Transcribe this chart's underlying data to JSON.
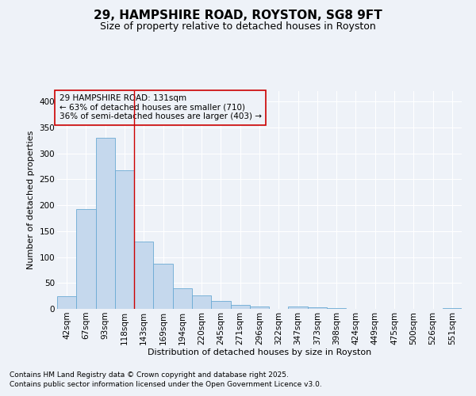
{
  "title": "29, HAMPSHIRE ROAD, ROYSTON, SG8 9FT",
  "subtitle": "Size of property relative to detached houses in Royston",
  "xlabel": "Distribution of detached houses by size in Royston",
  "ylabel": "Number of detached properties",
  "footnote1": "Contains HM Land Registry data © Crown copyright and database right 2025.",
  "footnote2": "Contains public sector information licensed under the Open Government Licence v3.0.",
  "annotation_line1": "29 HAMPSHIRE ROAD: 131sqm",
  "annotation_line2": "← 63% of detached houses are smaller (710)",
  "annotation_line3": "36% of semi-detached houses are larger (403) →",
  "bar_color": "#c5d8ed",
  "bar_edge_color": "#6aaad4",
  "vline_color": "#cc0000",
  "vline_x_index": 3.5,
  "annotation_box_edgecolor": "#cc0000",
  "background_color": "#eef2f8",
  "plot_bg_color": "#eef2f8",
  "grid_color": "#ffffff",
  "categories": [
    "42sqm",
    "67sqm",
    "93sqm",
    "118sqm",
    "143sqm",
    "169sqm",
    "194sqm",
    "220sqm",
    "245sqm",
    "271sqm",
    "296sqm",
    "322sqm",
    "347sqm",
    "373sqm",
    "398sqm",
    "424sqm",
    "449sqm",
    "475sqm",
    "500sqm",
    "526sqm",
    "551sqm"
  ],
  "values": [
    25,
    193,
    330,
    268,
    130,
    87,
    40,
    26,
    16,
    8,
    5,
    0,
    4,
    3,
    2,
    0,
    0,
    0,
    0,
    0,
    2
  ],
  "ylim": [
    0,
    420
  ],
  "yticks": [
    0,
    50,
    100,
    150,
    200,
    250,
    300,
    350,
    400
  ],
  "title_fontsize": 11,
  "subtitle_fontsize": 9,
  "axis_label_fontsize": 8,
  "tick_fontsize": 7.5,
  "footnote_fontsize": 6.5,
  "annotation_fontsize": 7.5
}
